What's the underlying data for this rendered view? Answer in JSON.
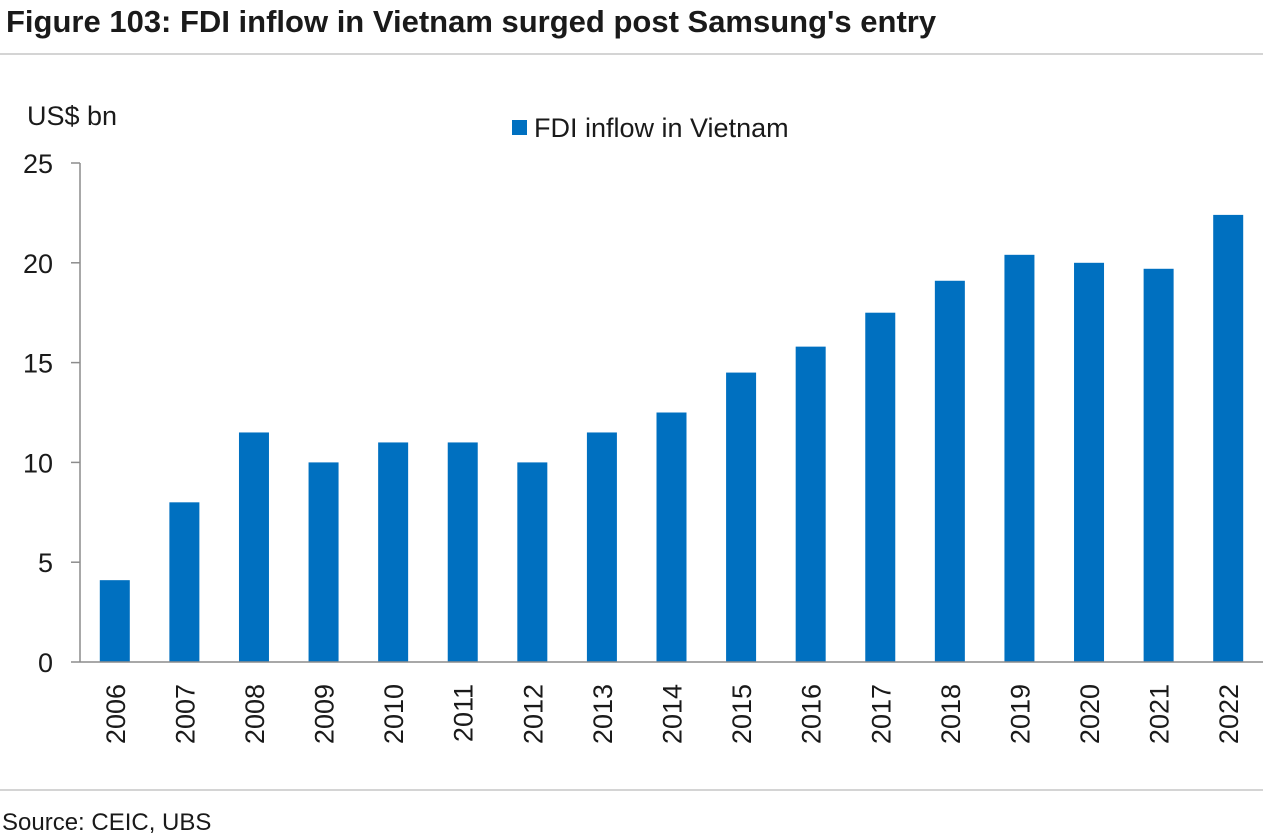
{
  "figure": {
    "title": "Figure 103: FDI inflow in Vietnam surged post Samsung's entry",
    "source": "Source: CEIC, UBS"
  },
  "chart_data": {
    "type": "bar",
    "title": "",
    "xlabel": "",
    "ylabel": "US$ bn",
    "ylim": [
      0,
      25
    ],
    "yticks": [
      0,
      5,
      10,
      15,
      20,
      25
    ],
    "grid": false,
    "legend_position": "top-center",
    "categories": [
      "2006",
      "2007",
      "2008",
      "2009",
      "2010",
      "2011",
      "2012",
      "2013",
      "2014",
      "2015",
      "2016",
      "2017",
      "2018",
      "2019",
      "2020",
      "2021",
      "2022"
    ],
    "series": [
      {
        "name": "FDI inflow in Vietnam",
        "color": "#0070c0",
        "values": [
          4.1,
          8.0,
          11.5,
          10.0,
          11.0,
          11.0,
          10.0,
          11.5,
          12.5,
          14.5,
          15.8,
          17.5,
          19.1,
          20.4,
          20.0,
          19.7,
          22.4
        ]
      }
    ]
  }
}
